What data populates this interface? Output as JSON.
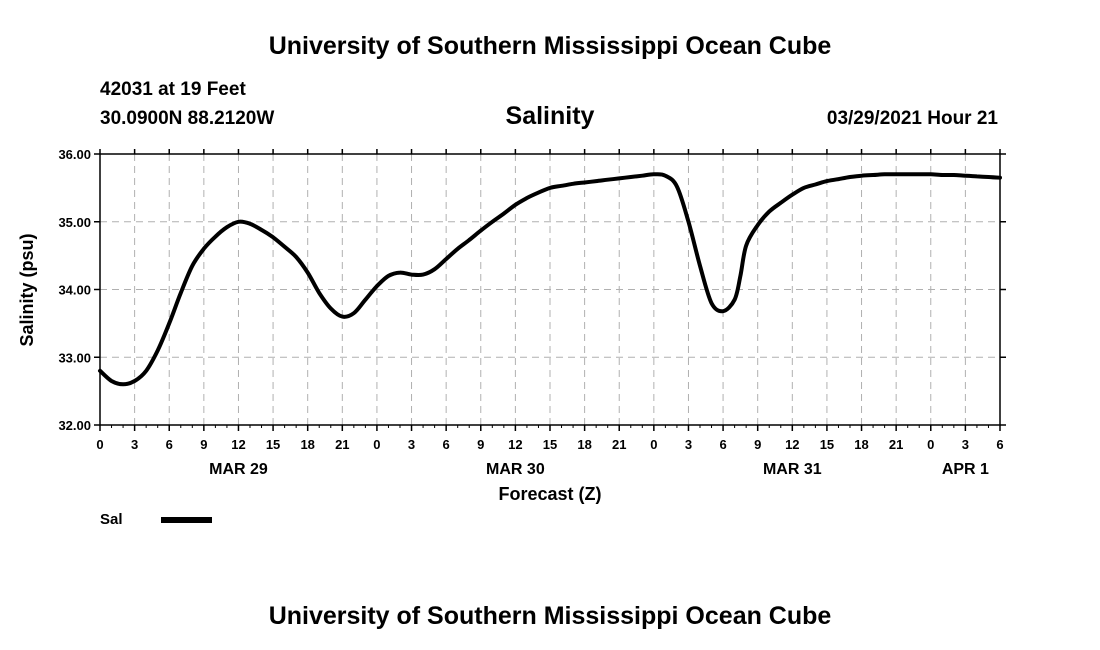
{
  "header": {
    "title": "University of Southern Mississippi Ocean Cube",
    "station": "42031 at 19 Feet",
    "coords": "30.0900N  88.2120W",
    "timestamp": "03/29/2021 Hour 21"
  },
  "footer": {
    "title": "University of Southern Mississippi Ocean Cube"
  },
  "chart_data": {
    "type": "line",
    "title": "Salinity",
    "xlabel": "Forecast (Z)",
    "ylabel": "Salinity (psu)",
    "xlim": [
      0,
      78
    ],
    "ylim": [
      32,
      36
    ],
    "grid": true,
    "x_ticks": [
      0,
      3,
      6,
      9,
      12,
      15,
      18,
      21,
      24,
      27,
      30,
      33,
      36,
      39,
      42,
      45,
      48,
      51,
      54,
      57,
      60,
      63,
      66,
      69,
      72,
      75,
      78
    ],
    "x_tick_labels": [
      "0",
      "3",
      "6",
      "9",
      "12",
      "15",
      "18",
      "21",
      "0",
      "3",
      "6",
      "9",
      "12",
      "15",
      "18",
      "21",
      "0",
      "3",
      "6",
      "9",
      "12",
      "15",
      "18",
      "21",
      "0",
      "3",
      "6"
    ],
    "y_ticks": [
      32,
      33,
      34,
      35,
      36
    ],
    "y_tick_labels": [
      "32.00",
      "33.00",
      "34.00",
      "35.00",
      "36.00"
    ],
    "day_labels": [
      {
        "x": 12,
        "label": "MAR 29"
      },
      {
        "x": 36,
        "label": "MAR 30"
      },
      {
        "x": 60,
        "label": "MAR 31"
      },
      {
        "x": 75,
        "label": "APR 1"
      }
    ],
    "series": [
      {
        "name": "Sal",
        "x": [
          0,
          1,
          2,
          3,
          4,
          5,
          6,
          7,
          8,
          9,
          10,
          11,
          12,
          13,
          14,
          15,
          16,
          17,
          18,
          19,
          20,
          21,
          22,
          23,
          24,
          25,
          26,
          27,
          28,
          29,
          30,
          31,
          32,
          33,
          34,
          35,
          36,
          37,
          38,
          39,
          40,
          41,
          42,
          43,
          44,
          45,
          46,
          47,
          48,
          49,
          50,
          51,
          52,
          53,
          54,
          55,
          55.5,
          56,
          57,
          58,
          59,
          60,
          61,
          62,
          63,
          64,
          65,
          66,
          67,
          68,
          69,
          70,
          71,
          72,
          73,
          74,
          75,
          76,
          77,
          78
        ],
        "y": [
          32.8,
          32.65,
          32.6,
          32.65,
          32.8,
          33.1,
          33.5,
          33.95,
          34.35,
          34.6,
          34.78,
          34.92,
          35.0,
          34.97,
          34.88,
          34.77,
          34.63,
          34.48,
          34.25,
          33.95,
          33.72,
          33.6,
          33.65,
          33.85,
          34.05,
          34.2,
          34.25,
          34.22,
          34.22,
          34.3,
          34.45,
          34.6,
          34.73,
          34.87,
          35.0,
          35.12,
          35.25,
          35.35,
          35.43,
          35.5,
          35.53,
          35.56,
          35.58,
          35.6,
          35.62,
          35.64,
          35.66,
          35.68,
          35.7,
          35.68,
          35.52,
          35.0,
          34.35,
          33.8,
          33.68,
          33.85,
          34.2,
          34.65,
          34.95,
          35.15,
          35.28,
          35.4,
          35.5,
          35.55,
          35.6,
          35.63,
          35.66,
          35.68,
          35.69,
          35.7,
          35.7,
          35.7,
          35.7,
          35.7,
          35.69,
          35.69,
          35.68,
          35.67,
          35.66,
          35.65
        ]
      }
    ],
    "legend": [
      {
        "label": "Sal"
      }
    ],
    "legend_position": "bottom-left"
  }
}
